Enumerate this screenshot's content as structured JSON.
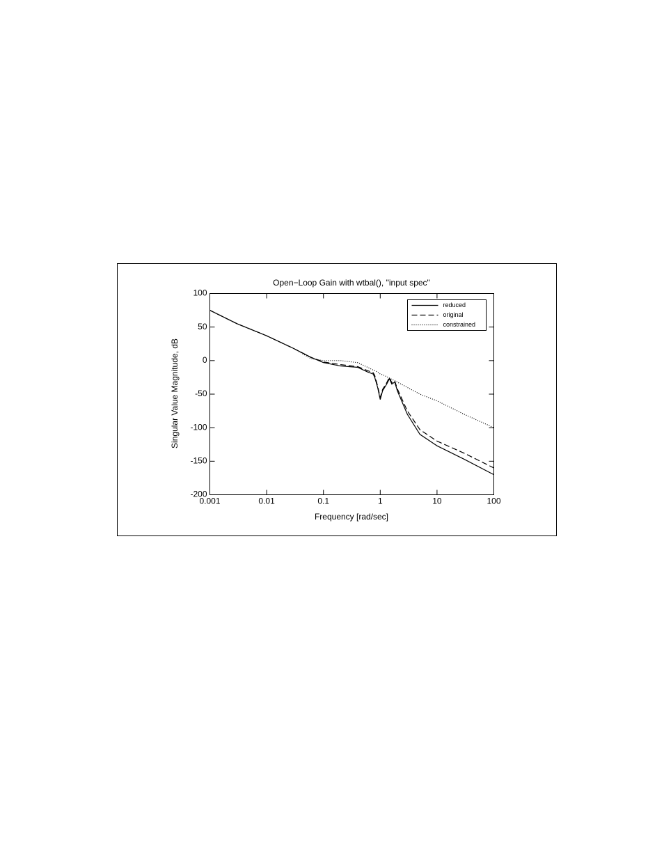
{
  "chart_data": {
    "type": "line",
    "title": "Open−Loop Gain with wtbal(), \"input spec\"",
    "xlabel": "Frequency [rad/sec]",
    "ylabel": "Singular Value Magnitude, dB",
    "xscale": "log",
    "x": [
      0.001,
      0.003,
      0.01,
      0.03,
      0.06,
      0.1,
      0.2,
      0.4,
      0.6,
      0.75,
      0.8,
      0.9,
      1.0,
      1.1,
      1.3,
      1.45,
      1.6,
      1.8,
      2,
      3,
      5,
      10,
      30,
      100
    ],
    "series": [
      {
        "name": "reduced",
        "color": "#000000",
        "style": "solid",
        "values": [
          75,
          55,
          37,
          18,
          5,
          -3,
          -8,
          -10,
          -17,
          -20,
          -25,
          -40,
          -58,
          -45,
          -35,
          -27,
          -35,
          -32,
          -45,
          -80,
          -110,
          -127,
          -147,
          -170
        ]
      },
      {
        "name": "original",
        "color": "#000000",
        "style": "dashed",
        "values": [
          75,
          55,
          37,
          18,
          5,
          -2,
          -6,
          -9,
          -15,
          -18,
          -22,
          -38,
          -55,
          -43,
          -33,
          -25,
          -33,
          -30,
          -42,
          -75,
          -103,
          -120,
          -138,
          -160
        ]
      },
      {
        "name": "constrained",
        "color": "#000000",
        "style": "dotted",
        "values": [
          75,
          55,
          37,
          18,
          3,
          0,
          0,
          -3,
          -10,
          -14,
          -15,
          -17,
          -20,
          -21,
          -24,
          -26,
          -28,
          -30,
          -32,
          -40,
          -50,
          -60,
          -80,
          -100
        ]
      }
    ],
    "xlim": [
      0.001,
      100
    ],
    "xticks": [
      0.001,
      0.01,
      0.1,
      1,
      10,
      100
    ],
    "ylim": [
      -200,
      100
    ],
    "yticks": [
      100,
      50,
      0,
      -50,
      -100,
      -150,
      -200
    ],
    "legend": "top-right"
  }
}
